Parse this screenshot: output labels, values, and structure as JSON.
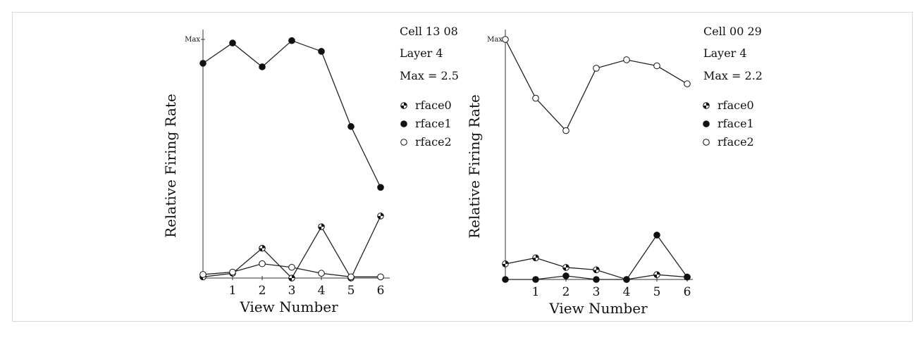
{
  "chart_data": [
    {
      "type": "line",
      "cell_label": "Cell 13 08",
      "layer_label": "Layer 4",
      "max_label": "Max = 2.5",
      "ymax_tick": "Max",
      "xlabel": "View Number",
      "ylabel": "Relative Firing Rate",
      "x": [
        0,
        1,
        2,
        3,
        4,
        5,
        6
      ],
      "x_tick_labels": [
        "1",
        "2",
        "3",
        "4",
        "5",
        "6"
      ],
      "xlim": [
        0,
        6.3
      ],
      "ylim": [
        0,
        1
      ],
      "series": [
        {
          "name": "rface0",
          "marker": "half",
          "values": [
            0.005,
            0.02,
            0.125,
            0.0,
            0.215,
            0.0,
            0.26
          ]
        },
        {
          "name": "rface1",
          "marker": "filled",
          "values": [
            0.9,
            0.985,
            0.885,
            0.995,
            0.95,
            0.635,
            0.38
          ]
        },
        {
          "name": "rface2",
          "marker": "open",
          "values": [
            0.015,
            0.025,
            0.06,
            0.045,
            0.02,
            0.005,
            0.005
          ]
        }
      ]
    },
    {
      "type": "line",
      "cell_label": "Cell 00 29",
      "layer_label": "Layer 4",
      "max_label": "Max = 2.2",
      "ymax_tick": "Max",
      "xlabel": "View Number",
      "ylabel": "Relative Firing Rate",
      "x": [
        0,
        1,
        2,
        3,
        4,
        5,
        6
      ],
      "x_tick_labels": [
        "1",
        "2",
        "3",
        "4",
        "5",
        "6"
      ],
      "xlim": [
        0,
        6.3
      ],
      "ylim": [
        0,
        1
      ],
      "series": [
        {
          "name": "rface0",
          "marker": "half",
          "values": [
            0.065,
            0.09,
            0.05,
            0.04,
            0.0,
            0.02,
            0.01
          ]
        },
        {
          "name": "rface1",
          "marker": "filled",
          "values": [
            0.0,
            0.0,
            0.015,
            0.0,
            0.0,
            0.185,
            0.01
          ]
        },
        {
          "name": "rface2",
          "marker": "open",
          "values": [
            1.0,
            0.755,
            0.62,
            0.88,
            0.915,
            0.89,
            0.815
          ]
        }
      ]
    }
  ]
}
